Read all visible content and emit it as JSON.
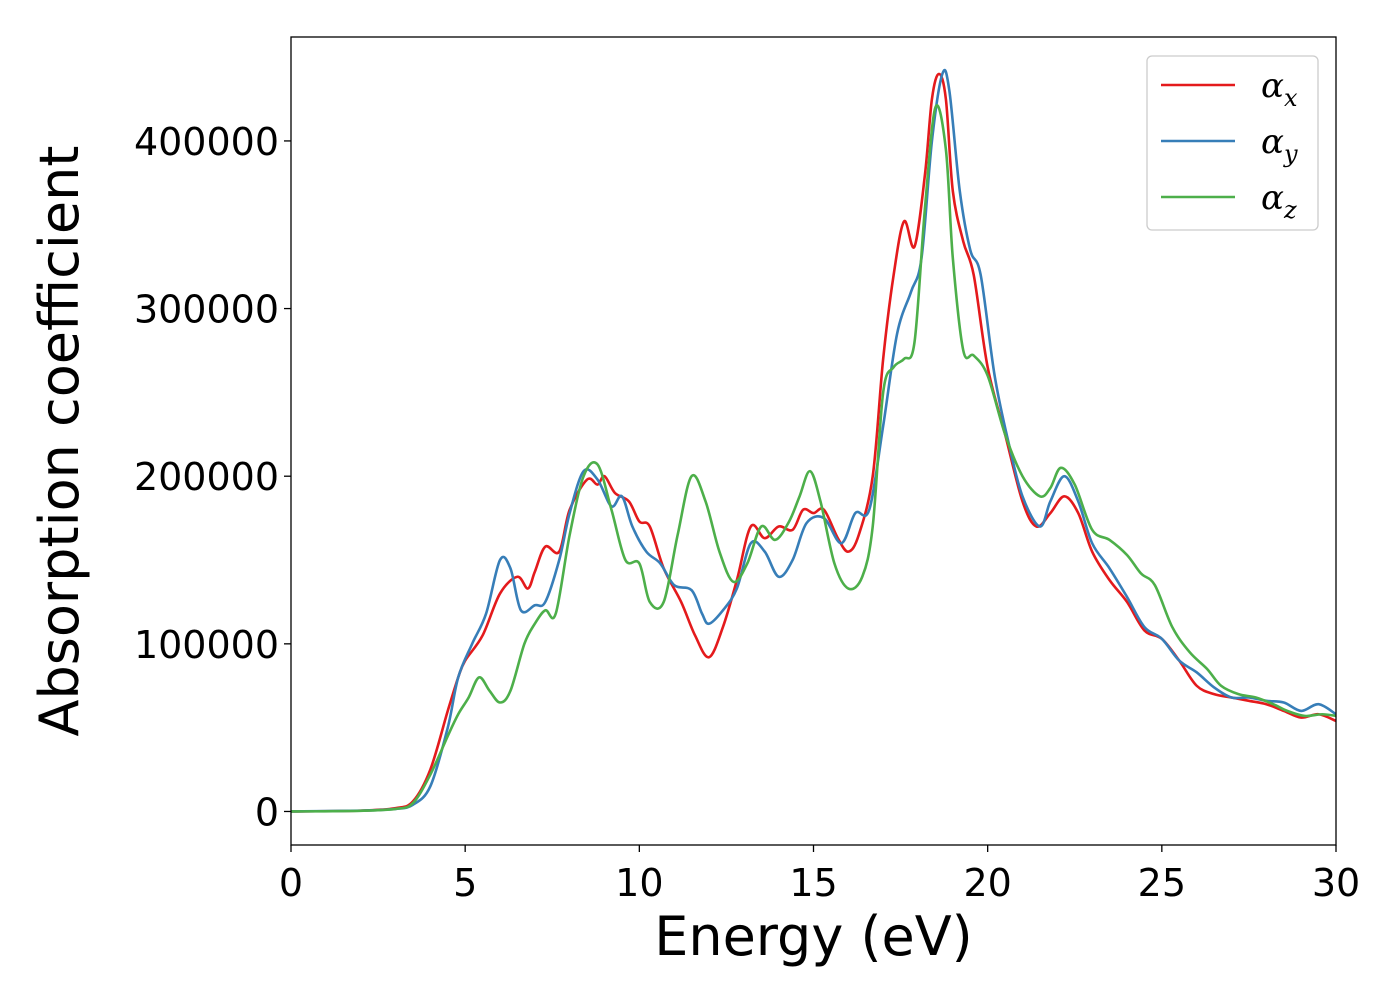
{
  "chart_data": {
    "type": "line",
    "title": "",
    "xlabel": "Energy (eV)",
    "ylabel": "Absorption coefficient",
    "xlim": [
      0,
      30
    ],
    "ylim": [
      -20000,
      462000
    ],
    "xticks": [
      0,
      5,
      10,
      15,
      20,
      25,
      30
    ],
    "yticks": [
      0,
      100000,
      200000,
      300000,
      400000
    ],
    "grid": false,
    "legend": "top-right",
    "series": [
      {
        "name": "α_x",
        "symbol": "α",
        "subscript": "x",
        "color": "#e41a1c",
        "points": [
          [
            0,
            0
          ],
          [
            2,
            500
          ],
          [
            3,
            2000
          ],
          [
            3.5,
            6000
          ],
          [
            4,
            25000
          ],
          [
            4.5,
            60000
          ],
          [
            4.8,
            80000
          ],
          [
            5,
            90000
          ],
          [
            5.5,
            105000
          ],
          [
            6,
            130000
          ],
          [
            6.5,
            140000
          ],
          [
            6.8,
            133000
          ],
          [
            7,
            143000
          ],
          [
            7.3,
            158000
          ],
          [
            7.7,
            155000
          ],
          [
            8,
            180000
          ],
          [
            8.5,
            198000
          ],
          [
            8.8,
            195000
          ],
          [
            9,
            200000
          ],
          [
            9.3,
            190000
          ],
          [
            9.7,
            185000
          ],
          [
            10,
            173000
          ],
          [
            10.3,
            170000
          ],
          [
            10.7,
            145000
          ],
          [
            11.2,
            125000
          ],
          [
            11.6,
            105000
          ],
          [
            12,
            92000
          ],
          [
            12.4,
            110000
          ],
          [
            12.8,
            138000
          ],
          [
            13.2,
            170000
          ],
          [
            13.6,
            163000
          ],
          [
            14,
            170000
          ],
          [
            14.4,
            168000
          ],
          [
            14.7,
            180000
          ],
          [
            15,
            178000
          ],
          [
            15.3,
            180000
          ],
          [
            15.7,
            163000
          ],
          [
            16,
            155000
          ],
          [
            16.3,
            165000
          ],
          [
            16.7,
            200000
          ],
          [
            17,
            270000
          ],
          [
            17.3,
            320000
          ],
          [
            17.6,
            352000
          ],
          [
            17.9,
            337000
          ],
          [
            18.2,
            380000
          ],
          [
            18.4,
            425000
          ],
          [
            18.6,
            440000
          ],
          [
            18.8,
            425000
          ],
          [
            19,
            370000
          ],
          [
            19.3,
            340000
          ],
          [
            19.6,
            320000
          ],
          [
            20,
            265000
          ],
          [
            20.5,
            225000
          ],
          [
            21,
            185000
          ],
          [
            21.4,
            170000
          ],
          [
            21.8,
            178000
          ],
          [
            22.2,
            188000
          ],
          [
            22.6,
            178000
          ],
          [
            23,
            155000
          ],
          [
            23.5,
            138000
          ],
          [
            24,
            125000
          ],
          [
            24.5,
            108000
          ],
          [
            25,
            103000
          ],
          [
            25.5,
            90000
          ],
          [
            26,
            75000
          ],
          [
            26.5,
            70000
          ],
          [
            27,
            68000
          ],
          [
            27.5,
            66000
          ],
          [
            28,
            64000
          ],
          [
            28.5,
            60000
          ],
          [
            29,
            56000
          ],
          [
            29.5,
            58000
          ],
          [
            30,
            54000
          ]
        ]
      },
      {
        "name": "α_y",
        "symbol": "α",
        "subscript": "y",
        "color": "#377eb8",
        "points": [
          [
            0,
            0
          ],
          [
            2,
            500
          ],
          [
            3,
            1500
          ],
          [
            3.5,
            4000
          ],
          [
            4,
            15000
          ],
          [
            4.5,
            50000
          ],
          [
            4.8,
            80000
          ],
          [
            5.2,
            100000
          ],
          [
            5.6,
            118000
          ],
          [
            6,
            150000
          ],
          [
            6.3,
            145000
          ],
          [
            6.6,
            120000
          ],
          [
            7,
            123000
          ],
          [
            7.3,
            125000
          ],
          [
            7.7,
            150000
          ],
          [
            8,
            178000
          ],
          [
            8.4,
            203000
          ],
          [
            8.8,
            198000
          ],
          [
            9.2,
            182000
          ],
          [
            9.5,
            188000
          ],
          [
            9.8,
            170000
          ],
          [
            10.2,
            155000
          ],
          [
            10.6,
            148000
          ],
          [
            11,
            135000
          ],
          [
            11.5,
            132000
          ],
          [
            11.8,
            118000
          ],
          [
            12,
            112000
          ],
          [
            12.4,
            120000
          ],
          [
            12.8,
            133000
          ],
          [
            13.2,
            160000
          ],
          [
            13.6,
            155000
          ],
          [
            14,
            140000
          ],
          [
            14.4,
            150000
          ],
          [
            14.8,
            172000
          ],
          [
            15.3,
            175000
          ],
          [
            15.8,
            160000
          ],
          [
            16.2,
            178000
          ],
          [
            16.6,
            180000
          ],
          [
            17,
            230000
          ],
          [
            17.4,
            285000
          ],
          [
            17.8,
            310000
          ],
          [
            18.1,
            330000
          ],
          [
            18.4,
            400000
          ],
          [
            18.7,
            440000
          ],
          [
            18.9,
            430000
          ],
          [
            19.2,
            370000
          ],
          [
            19.5,
            335000
          ],
          [
            19.8,
            320000
          ],
          [
            20.2,
            260000
          ],
          [
            20.6,
            220000
          ],
          [
            21,
            188000
          ],
          [
            21.5,
            170000
          ],
          [
            21.8,
            185000
          ],
          [
            22.2,
            200000
          ],
          [
            22.6,
            185000
          ],
          [
            23,
            160000
          ],
          [
            23.5,
            145000
          ],
          [
            24,
            128000
          ],
          [
            24.5,
            110000
          ],
          [
            25,
            103000
          ],
          [
            25.5,
            90000
          ],
          [
            26,
            83000
          ],
          [
            26.5,
            74000
          ],
          [
            27,
            68000
          ],
          [
            27.5,
            68000
          ],
          [
            28,
            66000
          ],
          [
            28.5,
            65000
          ],
          [
            29,
            60000
          ],
          [
            29.5,
            64000
          ],
          [
            30,
            58000
          ]
        ]
      },
      {
        "name": "α_z",
        "symbol": "α",
        "subscript": "z",
        "color": "#4daf4a",
        "points": [
          [
            0,
            0
          ],
          [
            2,
            400
          ],
          [
            3,
            1500
          ],
          [
            3.5,
            5000
          ],
          [
            4,
            22000
          ],
          [
            4.5,
            45000
          ],
          [
            4.8,
            58000
          ],
          [
            5.1,
            68000
          ],
          [
            5.4,
            80000
          ],
          [
            5.7,
            72000
          ],
          [
            6,
            65000
          ],
          [
            6.3,
            72000
          ],
          [
            6.7,
            100000
          ],
          [
            7,
            112000
          ],
          [
            7.3,
            120000
          ],
          [
            7.6,
            118000
          ],
          [
            8,
            165000
          ],
          [
            8.4,
            200000
          ],
          [
            8.8,
            207000
          ],
          [
            9.2,
            180000
          ],
          [
            9.6,
            150000
          ],
          [
            10,
            148000
          ],
          [
            10.3,
            125000
          ],
          [
            10.7,
            125000
          ],
          [
            11.1,
            165000
          ],
          [
            11.5,
            200000
          ],
          [
            11.9,
            185000
          ],
          [
            12.3,
            155000
          ],
          [
            12.7,
            137000
          ],
          [
            13.1,
            148000
          ],
          [
            13.5,
            170000
          ],
          [
            13.9,
            162000
          ],
          [
            14.3,
            173000
          ],
          [
            14.6,
            188000
          ],
          [
            14.9,
            203000
          ],
          [
            15.2,
            185000
          ],
          [
            15.6,
            148000
          ],
          [
            16,
            133000
          ],
          [
            16.4,
            140000
          ],
          [
            16.7,
            170000
          ],
          [
            17,
            250000
          ],
          [
            17.3,
            265000
          ],
          [
            17.6,
            270000
          ],
          [
            17.9,
            280000
          ],
          [
            18.2,
            360000
          ],
          [
            18.5,
            420000
          ],
          [
            18.8,
            395000
          ],
          [
            19,
            330000
          ],
          [
            19.3,
            275000
          ],
          [
            19.6,
            272000
          ],
          [
            20,
            260000
          ],
          [
            20.5,
            225000
          ],
          [
            21,
            200000
          ],
          [
            21.5,
            188000
          ],
          [
            21.8,
            193000
          ],
          [
            22.1,
            205000
          ],
          [
            22.5,
            195000
          ],
          [
            23,
            168000
          ],
          [
            23.5,
            162000
          ],
          [
            24,
            153000
          ],
          [
            24.4,
            142000
          ],
          [
            24.8,
            135000
          ],
          [
            25.3,
            110000
          ],
          [
            25.8,
            95000
          ],
          [
            26.3,
            85000
          ],
          [
            26.7,
            75000
          ],
          [
            27.2,
            70000
          ],
          [
            27.7,
            68000
          ],
          [
            28.2,
            64000
          ],
          [
            28.6,
            60000
          ],
          [
            29.1,
            57000
          ],
          [
            29.6,
            58000
          ],
          [
            30,
            57000
          ]
        ]
      }
    ]
  }
}
